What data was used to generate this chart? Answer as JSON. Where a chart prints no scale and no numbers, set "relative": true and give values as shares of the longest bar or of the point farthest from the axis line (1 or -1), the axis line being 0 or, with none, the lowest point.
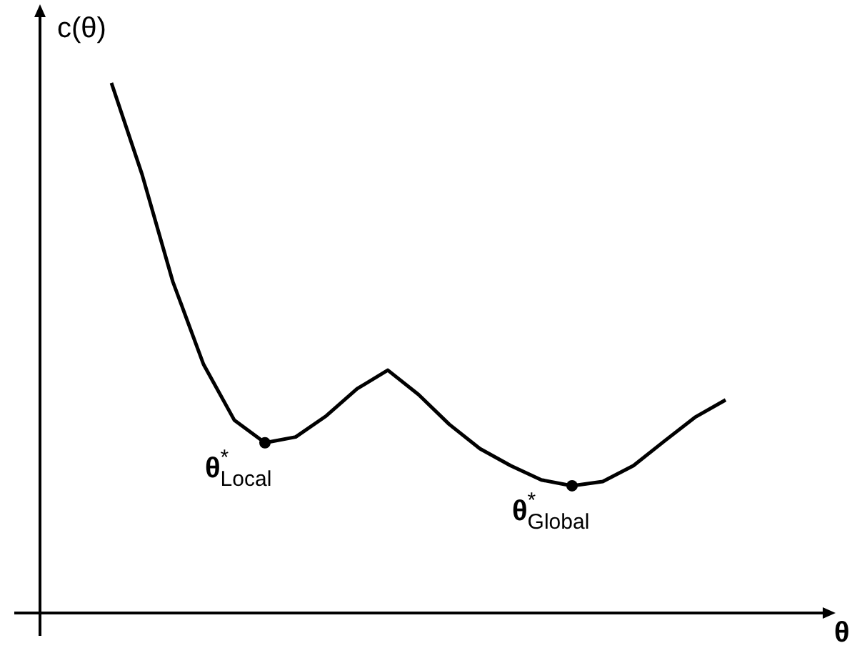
{
  "chart_data": {
    "type": "line",
    "relative": true,
    "xlabel": "θ",
    "ylabel": "c(θ)",
    "legend": false,
    "marker": "none",
    "color": "#000000",
    "categories": [
      null,
      null,
      null,
      null,
      null,
      null,
      null,
      null,
      null,
      null,
      null,
      null,
      null,
      null,
      null,
      null,
      null,
      null,
      null,
      null,
      null
    ],
    "values": [
      1,
      0.827,
      0.625,
      0.469,
      0.364,
      0.321,
      0.332,
      0.372,
      0.423,
      0.458,
      0.412,
      0.356,
      0.31,
      0.278,
      0.251,
      0.24,
      0.248,
      0.278,
      0.324,
      0.369,
      0.402
    ],
    "annotations": [
      "θ$^{*}$$_{Local}$",
      "θ$^{*}$$_{Global}$"
    ]
  }
}
